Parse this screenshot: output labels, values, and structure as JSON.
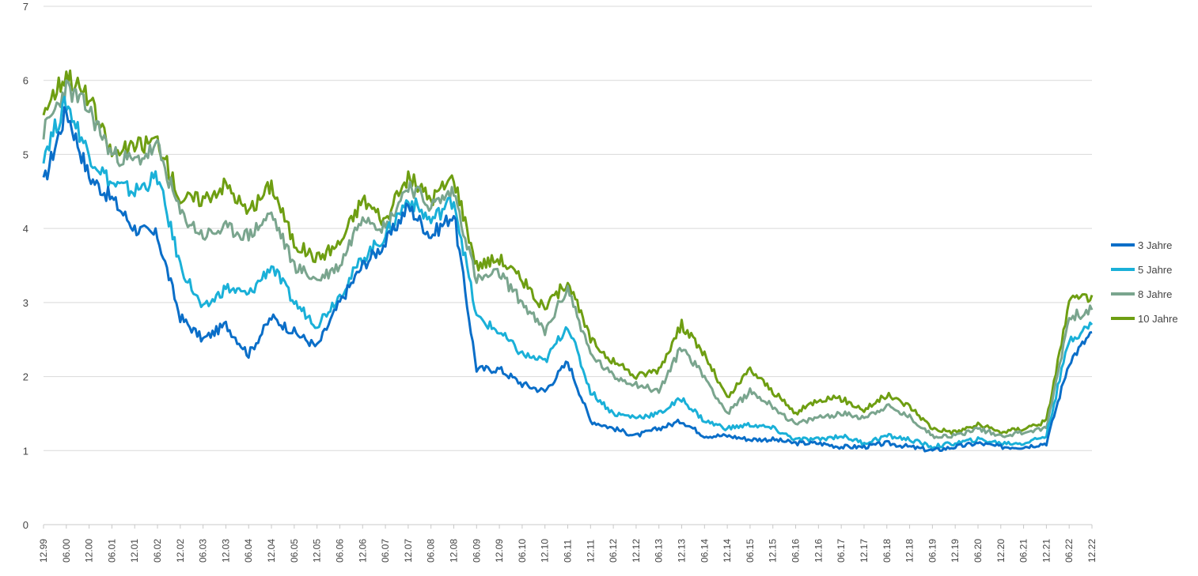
{
  "chart_data": {
    "type": "line",
    "title": "",
    "xlabel": "",
    "ylabel": "",
    "ylim": [
      0,
      7
    ],
    "yticks": [
      0,
      1,
      2,
      3,
      4,
      5,
      6,
      7
    ],
    "grid": true,
    "legend_position": "right",
    "x_tick_labels": [
      "12.99",
      "06.00",
      "12.00",
      "06.01",
      "12.01",
      "06.02",
      "12.02",
      "06.03",
      "12.03",
      "06.04",
      "12.04",
      "06.05",
      "12.05",
      "06.06",
      "12.06",
      "06.07",
      "12.07",
      "06.08",
      "12.08",
      "06.09",
      "12.09",
      "06.10",
      "12.10",
      "06.11",
      "12.11",
      "06.12",
      "12.12",
      "06.13",
      "12.13",
      "06.14",
      "12.14",
      "06.15",
      "12.15",
      "06.16",
      "12.16",
      "06.17",
      "12.17",
      "06.18",
      "12.18",
      "06.19",
      "12.19",
      "06.20",
      "12.20",
      "06.21",
      "12.21",
      "06.22",
      "12.22"
    ],
    "series": [
      {
        "name": "3 Jahre",
        "color": "#0a6ec8",
        "values": [
          4.6,
          5.6,
          4.7,
          4.4,
          4.0,
          3.9,
          2.8,
          2.5,
          2.7,
          2.3,
          2.8,
          2.6,
          2.4,
          3.0,
          3.5,
          3.8,
          4.3,
          3.9,
          4.2,
          2.1,
          2.1,
          1.9,
          1.8,
          2.2,
          1.4,
          1.3,
          1.2,
          1.3,
          1.4,
          1.2,
          1.2,
          1.15,
          1.15,
          1.1,
          1.1,
          1.05,
          1.05,
          1.1,
          1.05,
          1.0,
          1.05,
          1.1,
          1.05,
          1.05,
          1.1,
          2.2,
          2.6
        ]
      },
      {
        "name": "5 Jahre",
        "color": "#1ab0d8",
        "values": [
          5.0,
          5.7,
          5.0,
          4.6,
          4.5,
          4.7,
          3.5,
          2.9,
          3.2,
          3.1,
          3.5,
          3.0,
          2.7,
          3.1,
          3.6,
          3.9,
          4.4,
          4.1,
          4.4,
          2.8,
          2.6,
          2.3,
          2.2,
          2.7,
          1.8,
          1.5,
          1.45,
          1.5,
          1.7,
          1.4,
          1.3,
          1.35,
          1.3,
          1.15,
          1.15,
          1.2,
          1.1,
          1.2,
          1.15,
          1.05,
          1.1,
          1.15,
          1.1,
          1.1,
          1.2,
          2.5,
          2.7
        ]
      },
      {
        "name": "8 Jahre",
        "color": "#7aa58e",
        "values": [
          5.3,
          5.9,
          5.6,
          5.0,
          4.9,
          5.1,
          4.2,
          3.9,
          4.0,
          3.9,
          4.2,
          3.5,
          3.3,
          3.5,
          4.2,
          4.0,
          4.6,
          4.3,
          4.5,
          3.3,
          3.4,
          3.0,
          2.6,
          3.2,
          2.3,
          2.0,
          1.9,
          1.8,
          2.4,
          2.0,
          1.5,
          1.8,
          1.6,
          1.35,
          1.45,
          1.5,
          1.45,
          1.6,
          1.45,
          1.2,
          1.2,
          1.3,
          1.2,
          1.25,
          1.3,
          2.8,
          2.9
        ]
      },
      {
        "name": "10 Jahre",
        "color": "#6e9e12",
        "values": [
          5.6,
          6.1,
          5.75,
          5.0,
          5.1,
          5.2,
          4.4,
          4.4,
          4.6,
          4.2,
          4.6,
          3.8,
          3.6,
          3.8,
          4.4,
          4.1,
          4.7,
          4.4,
          4.7,
          3.5,
          3.6,
          3.3,
          2.9,
          3.3,
          2.5,
          2.2,
          2.0,
          2.1,
          2.7,
          2.3,
          1.7,
          2.1,
          1.8,
          1.5,
          1.7,
          1.7,
          1.55,
          1.75,
          1.6,
          1.3,
          1.25,
          1.35,
          1.25,
          1.3,
          1.4,
          3.0,
          3.1
        ]
      }
    ]
  }
}
